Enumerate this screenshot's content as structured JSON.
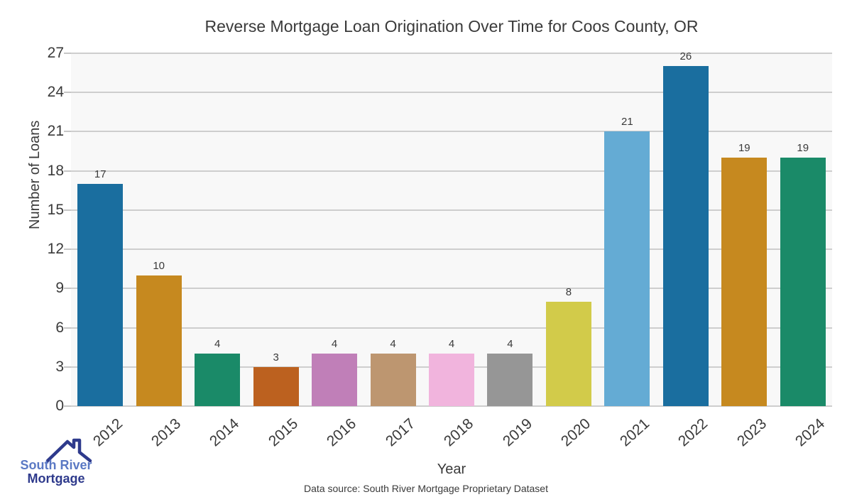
{
  "title": "Reverse Mortgage Loan Origination Over Time for Coos County, OR",
  "chart_data": {
    "type": "bar",
    "title": "Reverse Mortgage Loan Origination Over Time for Coos County, OR",
    "categories": [
      "2012",
      "2013",
      "2014",
      "2015",
      "2016",
      "2017",
      "2018",
      "2019",
      "2020",
      "2021",
      "2022",
      "2023",
      "2024"
    ],
    "values": [
      17,
      10,
      4,
      3,
      4,
      4,
      4,
      4,
      8,
      21,
      26,
      19,
      19
    ],
    "bar_colors": [
      "#1a6e9f",
      "#c6891f",
      "#1a8a68",
      "#bc611f",
      "#c07fb8",
      "#bd9670",
      "#f1b4dd",
      "#969696",
      "#d2cb4a",
      "#64abd4",
      "#1a6e9f",
      "#c6891f",
      "#1a8a68"
    ],
    "xlabel": "Year",
    "ylabel": "Number of Loans",
    "ylim": [
      0,
      27
    ],
    "yticks": [
      0,
      3,
      6,
      9,
      12,
      15,
      18,
      21,
      24,
      27
    ],
    "grid": true,
    "legend": "none",
    "plot_bg": "#f8f8f8",
    "grid_color": "#cecece",
    "text_color": "#3a3a3a"
  },
  "footer": {
    "source_text": "Data source: South River Mortgage Proprietary Dataset"
  },
  "logo": {
    "line1": "South River",
    "line2": "Mortgage",
    "line1_color": "#5b79c4",
    "line2_color": "#2e3a8c",
    "roof_color": "#2e3a8c"
  }
}
